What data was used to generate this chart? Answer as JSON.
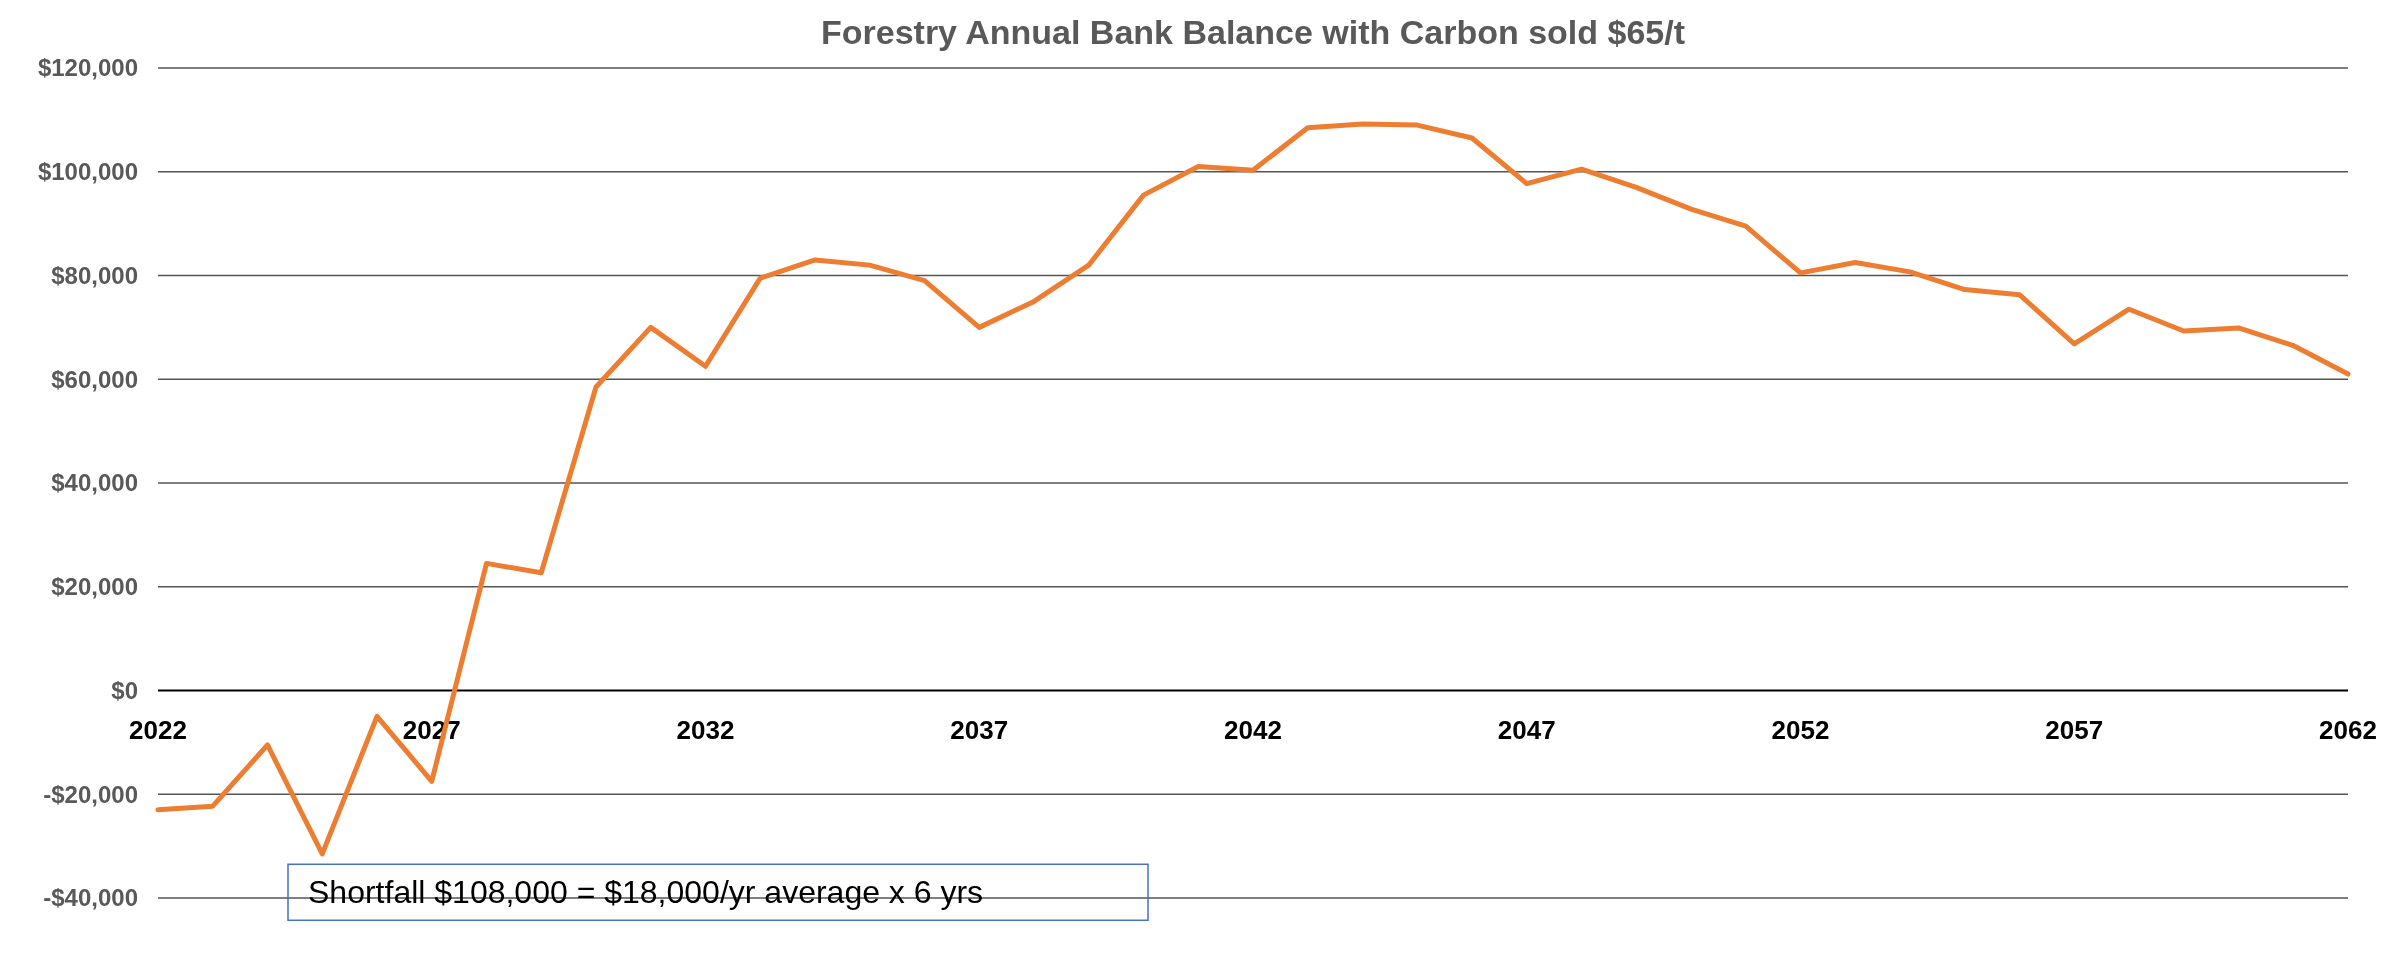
{
  "chart_data": {
    "type": "line",
    "title": "Forestry  Annual Bank Balance  with Carbon sold $65/t",
    "x": [
      2022,
      2023,
      2024,
      2025,
      2026,
      2027,
      2028,
      2029,
      2030,
      2031,
      2032,
      2033,
      2034,
      2035,
      2036,
      2037,
      2038,
      2039,
      2040,
      2041,
      2042,
      2043,
      2044,
      2045,
      2046,
      2047,
      2048,
      2049,
      2050,
      2051,
      2052,
      2053,
      2054,
      2055,
      2056,
      2057,
      2058,
      2059,
      2060,
      2061,
      2062
    ],
    "series": [
      {
        "color": "#ed7d31",
        "values": [
          -23000,
          -22300,
          -10500,
          -31500,
          -5000,
          -17500,
          24500,
          22700,
          58500,
          70000,
          62500,
          79500,
          83000,
          82000,
          79000,
          70000,
          75000,
          82000,
          95500,
          101000,
          100300,
          108500,
          109200,
          109000,
          106500,
          97700,
          100500,
          97000,
          92800,
          89500,
          80500,
          82500,
          80700,
          77300,
          76300,
          66800,
          73500,
          69300,
          69900,
          66500,
          61000
        ]
      }
    ],
    "xlim": [
      2022,
      2062
    ],
    "xticks": [
      2022,
      2027,
      2032,
      2037,
      2042,
      2047,
      2052,
      2057,
      2062
    ],
    "ylim": [
      -40000,
      120000
    ],
    "yticks": [
      {
        "value": -40000,
        "label": "-$40,000"
      },
      {
        "value": -20000,
        "label": "-$20,000"
      },
      {
        "value": 0,
        "label": "$0"
      },
      {
        "value": 20000,
        "label": "$20,000"
      },
      {
        "value": 40000,
        "label": "$40,000"
      },
      {
        "value": 60000,
        "label": "$60,000"
      },
      {
        "value": 80000,
        "label": "$80,000"
      },
      {
        "value": 100000,
        "label": "$100,000"
      },
      {
        "value": 120000,
        "label": "$120,000"
      }
    ],
    "grid": "y",
    "marker": "none",
    "line_style": "solid",
    "annotations": [
      "Shortfall $108,000 = $18,000/yr average x 6 yrs"
    ]
  }
}
